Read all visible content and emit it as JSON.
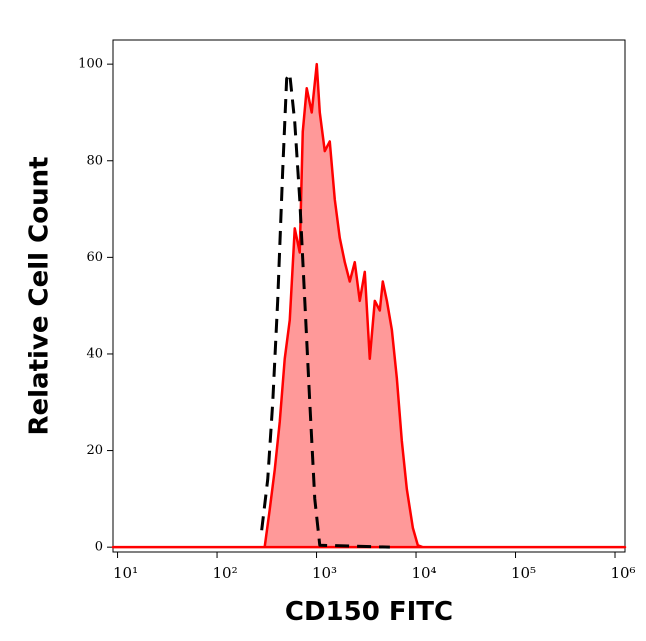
{
  "chart_data": {
    "type": "area",
    "xlabel": "CD150 FITC",
    "ylabel": "Relative Cell Count",
    "xscale": "log",
    "xlim": [
      9,
      1260000
    ],
    "ylim": [
      -1,
      105
    ],
    "xticks": [
      {
        "value": 10,
        "label": "10¹"
      },
      {
        "value": 100,
        "label": "10²"
      },
      {
        "value": 1000,
        "label": "10³"
      },
      {
        "value": 10000,
        "label": "10⁴"
      },
      {
        "value": 100000,
        "label": "10⁵"
      },
      {
        "value": 1000000,
        "label": "10⁶"
      }
    ],
    "yticks": [
      0,
      20,
      40,
      60,
      80,
      100
    ],
    "series": [
      {
        "color": "#ff0000",
        "fill_color": "#ff9999",
        "dashed": false,
        "x": [
          9,
          301,
          338,
          380,
          427,
          479,
          538,
          604,
          678,
          727,
          797,
          895,
          1005,
          1078,
          1210,
          1358,
          1525,
          1713,
          1923,
          2158,
          2422,
          2720,
          3054,
          3428,
          3851,
          4325,
          4634,
          5093,
          5715,
          6413,
          7197,
          8085,
          9290,
          10420,
          11720,
          1260000
        ],
        "values": [
          0,
          0,
          7.7,
          16,
          26,
          39,
          47,
          66,
          61,
          86,
          95,
          90,
          100,
          90,
          82,
          84,
          72,
          64,
          59,
          55,
          59,
          51,
          57,
          39,
          51,
          49,
          55,
          51,
          45,
          35,
          22,
          12,
          4,
          0.4,
          0,
          0
        ]
      },
      {
        "color": "#000000",
        "fill_color": null,
        "dashed": true,
        "x": [
          281,
          323,
          363,
          407,
          457,
          501,
          538,
          604,
          678,
          762,
          855,
          960,
          1078,
          5458
        ],
        "values": [
          3.5,
          14,
          30,
          51,
          78,
          97,
          98,
          88,
          72,
          51,
          30,
          10,
          0.4,
          0
        ]
      }
    ]
  }
}
